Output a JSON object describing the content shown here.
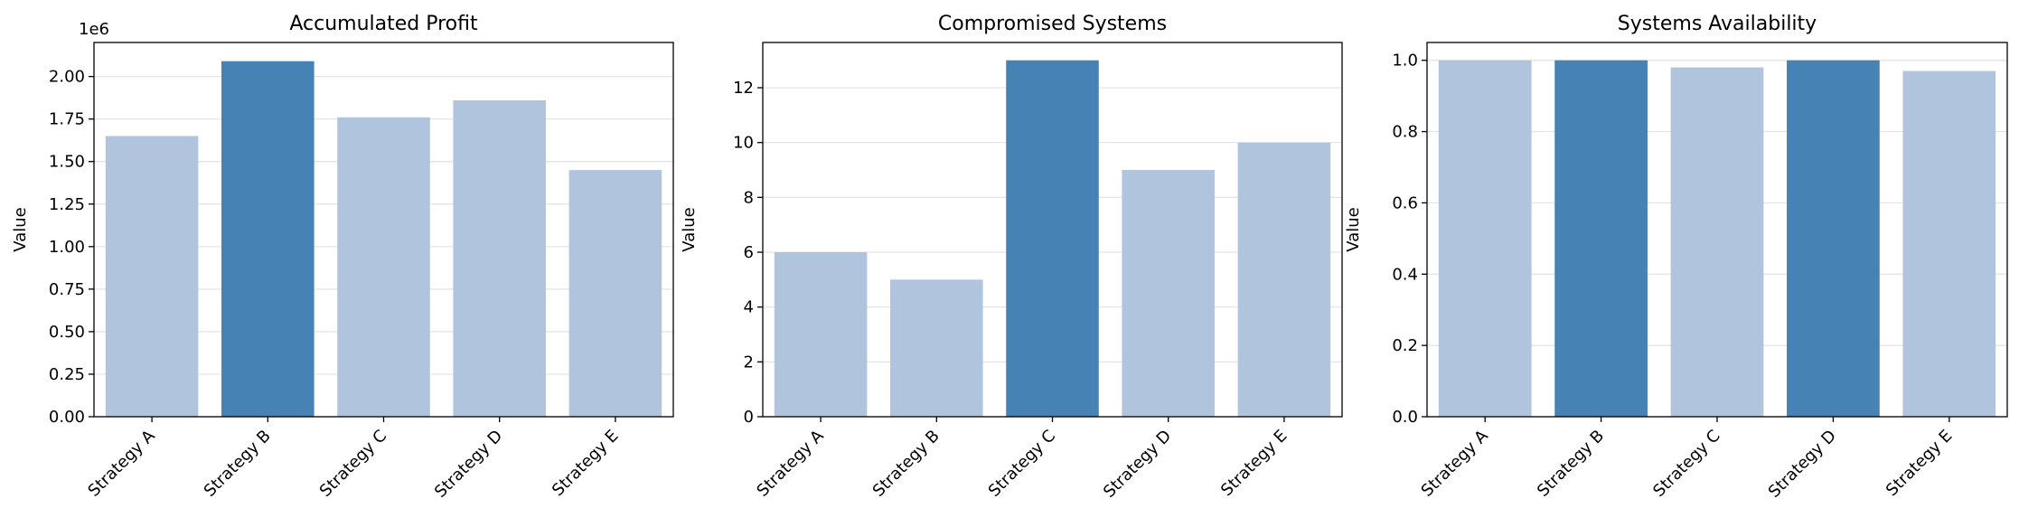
{
  "colors": {
    "normal_bar": "#b0c4de",
    "highlight_bar": "#4682b4",
    "grid": "#e3e3e3",
    "axis": "#000000"
  },
  "chart_data": [
    {
      "type": "bar",
      "title": "Accumulated Profit",
      "ylabel": "Value",
      "xlabel": "",
      "offset_label": "1e6",
      "categories": [
        "Strategy A",
        "Strategy B",
        "Strategy C",
        "Strategy D",
        "Strategy E"
      ],
      "values": [
        1650000,
        2090000,
        1760000,
        1860000,
        1450000
      ],
      "highlight": [
        false,
        true,
        false,
        false,
        false
      ],
      "ylim": [
        0,
        2200000
      ],
      "yticks": [
        0,
        250000,
        500000,
        750000,
        1000000,
        1250000,
        1500000,
        1750000,
        2000000
      ],
      "ytick_labels": [
        "0.00",
        "0.25",
        "0.50",
        "0.75",
        "1.00",
        "1.25",
        "1.50",
        "1.75",
        "2.00"
      ],
      "grid": "y"
    },
    {
      "type": "bar",
      "title": "Compromised Systems",
      "ylabel": "Value",
      "xlabel": "",
      "categories": [
        "Strategy A",
        "Strategy B",
        "Strategy C",
        "Strategy D",
        "Strategy E"
      ],
      "values": [
        6,
        5,
        13,
        9,
        10
      ],
      "highlight": [
        false,
        false,
        true,
        false,
        false
      ],
      "ylim": [
        0,
        13.65
      ],
      "yticks": [
        0,
        2,
        4,
        6,
        8,
        10,
        12
      ],
      "ytick_labels": [
        "0",
        "2",
        "4",
        "6",
        "8",
        "10",
        "12"
      ],
      "grid": "y"
    },
    {
      "type": "bar",
      "title": "Systems Availability",
      "ylabel": "Value",
      "xlabel": "",
      "categories": [
        "Strategy A",
        "Strategy B",
        "Strategy C",
        "Strategy D",
        "Strategy E"
      ],
      "values": [
        1.0,
        1.0,
        0.98,
        1.0,
        0.97
      ],
      "highlight": [
        false,
        true,
        false,
        true,
        false
      ],
      "ylim": [
        0,
        1.05
      ],
      "yticks": [
        0,
        0.2,
        0.4,
        0.6,
        0.8,
        1.0
      ],
      "ytick_labels": [
        "0.0",
        "0.2",
        "0.4",
        "0.6",
        "0.8",
        "1.0"
      ],
      "grid": "y"
    }
  ]
}
